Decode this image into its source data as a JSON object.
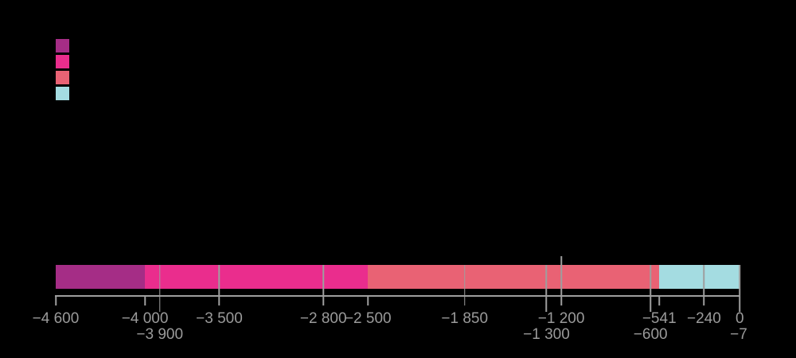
{
  "background_color": "#000000",
  "legend": {
    "swatches": [
      {
        "name": "legend-swatch-1",
        "color": "#a52d86"
      },
      {
        "name": "legend-swatch-2",
        "color": "#ea2d8d"
      },
      {
        "name": "legend-swatch-3",
        "color": "#e96274"
      },
      {
        "name": "legend-swatch-4",
        "color": "#a4dce1"
      }
    ]
  },
  "chart_data": {
    "type": "timeline-bar",
    "title": "",
    "xlabel": "",
    "ylabel": "",
    "xlim": [
      -4600,
      0
    ],
    "grid": false,
    "legend_position": "top-left",
    "axis_color": "#9e9e9e",
    "label_color": "#9a9a9a",
    "segments": [
      {
        "start": -4600,
        "end": -4000,
        "color": "#a52d86"
      },
      {
        "start": -4000,
        "end": -2500,
        "color": "#ea2d8d"
      },
      {
        "start": -2500,
        "end": -541,
        "color": "#e96274"
      },
      {
        "start": -541,
        "end": 0,
        "color": "#a4dce1"
      }
    ],
    "dividers": [
      -3900,
      -3500,
      -2800,
      -1850,
      -1300,
      -1200,
      -600,
      -240
    ],
    "ticks": [
      {
        "value": -4600,
        "label": "−4 600",
        "row": 1,
        "line": "short"
      },
      {
        "value": -4000,
        "label": "−4 000",
        "row": 1,
        "line": "short"
      },
      {
        "value": -3900,
        "label": "−3 900",
        "row": 2,
        "line": "cross"
      },
      {
        "value": -3500,
        "label": "−3 500",
        "row": 1,
        "line": "cross"
      },
      {
        "value": -2800,
        "label": "−2 800",
        "row": 1,
        "line": "cross"
      },
      {
        "value": -2500,
        "label": "−2 500",
        "row": 1,
        "line": "short"
      },
      {
        "value": -1850,
        "label": "−1 850",
        "row": 1,
        "line": "cross"
      },
      {
        "value": -1300,
        "label": "−1 300",
        "row": 2,
        "line": "cross"
      },
      {
        "value": -1200,
        "label": "−1 200",
        "row": 1,
        "line": "cross_above"
      },
      {
        "value": -600,
        "label": "−600",
        "row": 2,
        "line": "cross"
      },
      {
        "value": -541,
        "label": "−541",
        "row": 1,
        "line": "short"
      },
      {
        "value": -240,
        "label": "−240",
        "row": 1,
        "line": "cross"
      },
      {
        "value": -7,
        "label": "−7",
        "row": 2,
        "line": "none"
      },
      {
        "value": 0,
        "label": "0",
        "row": 1,
        "line": "edge"
      }
    ]
  }
}
